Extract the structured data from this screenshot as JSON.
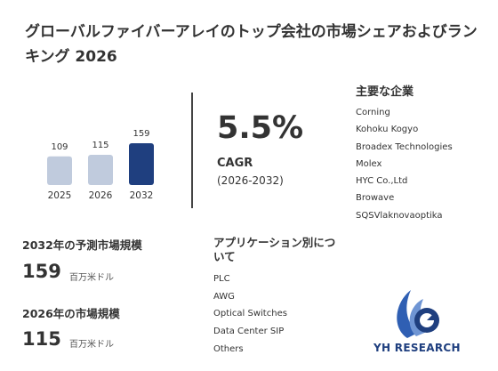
{
  "title": "グローバルファイバーアレイのトップ会社の市場シェアおよびランキング 2026",
  "chart_data": {
    "type": "bar",
    "categories": [
      "2025",
      "2026",
      "2032"
    ],
    "values": [
      109,
      115,
      159
    ],
    "highlight_category": "2032",
    "colors": {
      "default": "#c0cbdd",
      "highlight": "#1f3f7f"
    }
  },
  "cagr": {
    "value": "5.5%",
    "label": "CAGR",
    "period": "(2026-2032)"
  },
  "companies": {
    "title": "主要な企業",
    "items": [
      "Corning",
      "Kohoku Kogyo",
      "Broadex Technologies",
      "Molex",
      "HYC Co.,Ltd",
      "Browave",
      "SQSVlaknovaoptika"
    ]
  },
  "forecast_2032": {
    "label": "2032年の予測市場規模",
    "value": "159",
    "unit": "百万米ドル"
  },
  "market_2026": {
    "label": "2026年の市場規模",
    "value": "115",
    "unit": "百万米ドル"
  },
  "applications": {
    "title": "アプリケーション別について",
    "items": [
      "PLC",
      "AWG",
      "Optical Switches",
      "Data Center SIP",
      "Others"
    ]
  },
  "logo": {
    "text": "YH RESEARCH",
    "color": "#1f3f7f"
  }
}
